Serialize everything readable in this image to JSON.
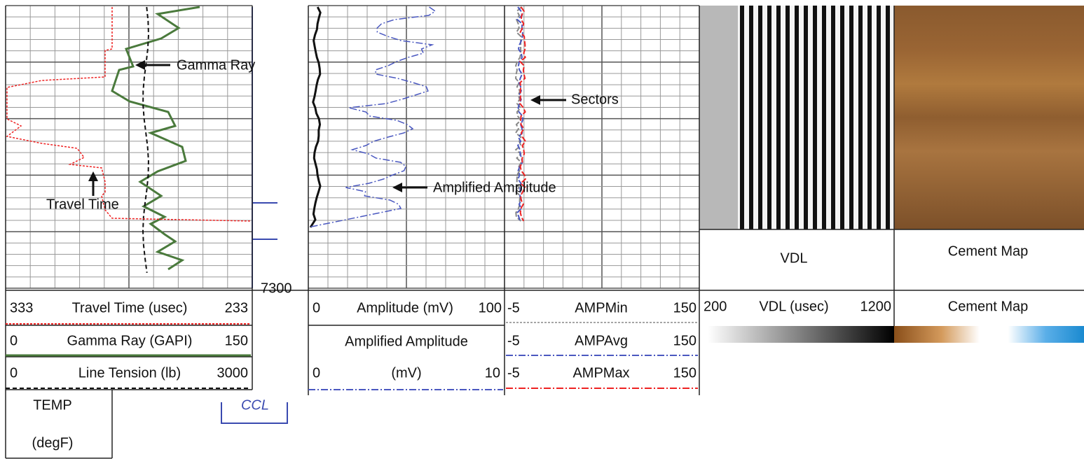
{
  "annotations": {
    "gamma_ray": "Gamma Ray",
    "travel_time": "Travel Time",
    "sectors": "Sectors",
    "amplified_amplitude": "Amplified Amplitude"
  },
  "depth_label": "7300",
  "image_labels": {
    "vdl": "VDL",
    "cement_map": "Cement Map"
  },
  "header": {
    "travel_time": {
      "left": 333,
      "name": "Travel Time (usec)",
      "right": 233
    },
    "gamma_ray": {
      "left": 0,
      "name": "Gamma Ray (GAPI)",
      "right": 150
    },
    "line_tension": {
      "left": 0,
      "name": "Line Tension (lb)",
      "right": 3000
    },
    "temp": {
      "name": "TEMP",
      "unit": "(degF)"
    },
    "ccl": "CCL",
    "amplitude": {
      "left": 0,
      "name": "Amplitude (mV)",
      "right": 100
    },
    "amplified_amplitude": {
      "name": "Amplified Amplitude",
      "left": 0,
      "unit": "(mV)",
      "right": 10
    },
    "amp_min": {
      "left": -5,
      "name": "AMPMin",
      "right": 150
    },
    "amp_avg": {
      "left": -5,
      "name": "AMPAvg",
      "right": 150
    },
    "amp_max": {
      "left": -5,
      "name": "AMPMax",
      "right": 150
    },
    "vdl": {
      "left": 200,
      "name": "VDL (usec)",
      "right": 1200
    },
    "cement_map": "Cement Map"
  }
}
